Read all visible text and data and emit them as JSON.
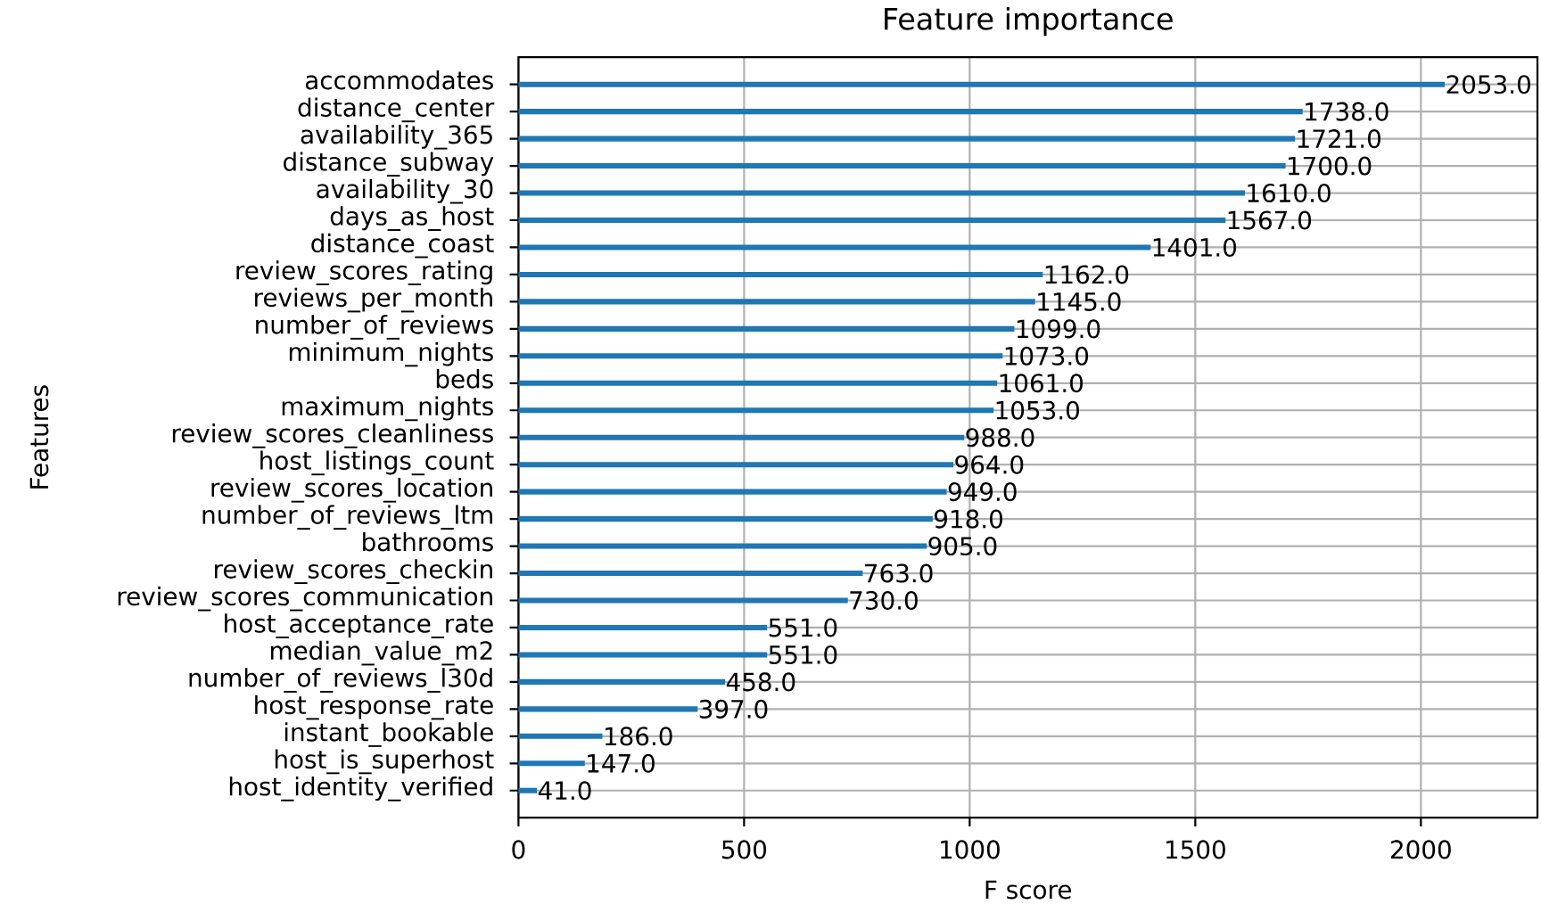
{
  "chart_data": {
    "type": "bar",
    "orientation": "horizontal",
    "title": "Feature importance",
    "xlabel": "F score",
    "ylabel": "Features",
    "categories": [
      "accommodates",
      "distance_center",
      "availability_365",
      "distance_subway",
      "availability_30",
      "days_as_host",
      "distance_coast",
      "review_scores_rating",
      "reviews_per_month",
      "number_of_reviews",
      "minimum_nights",
      "beds",
      "maximum_nights",
      "review_scores_cleanliness",
      "host_listings_count",
      "review_scores_location",
      "number_of_reviews_ltm",
      "bathrooms",
      "review_scores_checkin",
      "review_scores_communication",
      "host_acceptance_rate",
      "median_value_m2",
      "number_of_reviews_l30d",
      "host_response_rate",
      "instant_bookable",
      "host_is_superhost",
      "host_identity_verified"
    ],
    "values": [
      2053,
      1738,
      1721,
      1700,
      1610,
      1567,
      1401,
      1162,
      1145,
      1099,
      1073,
      1061,
      1053,
      988,
      964,
      949,
      918,
      905,
      763,
      730,
      551,
      551,
      458,
      397,
      186,
      147,
      41
    ],
    "value_labels": [
      "2053.0",
      "1738.0",
      "1721.0",
      "1700.0",
      "1610.0",
      "1567.0",
      "1401.0",
      "1162.0",
      "1145.0",
      "1099.0",
      "1073.0",
      "1061.0",
      "1053.0",
      "988.0",
      "964.0",
      "949.0",
      "918.0",
      "905.0",
      "763.0",
      "730.0",
      "551.0",
      "551.0",
      "458.0",
      "397.0",
      "186.0",
      "147.0",
      "41.0"
    ],
    "color": "#1f77b4",
    "xlim": [
      0,
      2258.3
    ],
    "xticks": [
      0,
      500,
      1000,
      1500,
      2000
    ],
    "grid": true
  }
}
